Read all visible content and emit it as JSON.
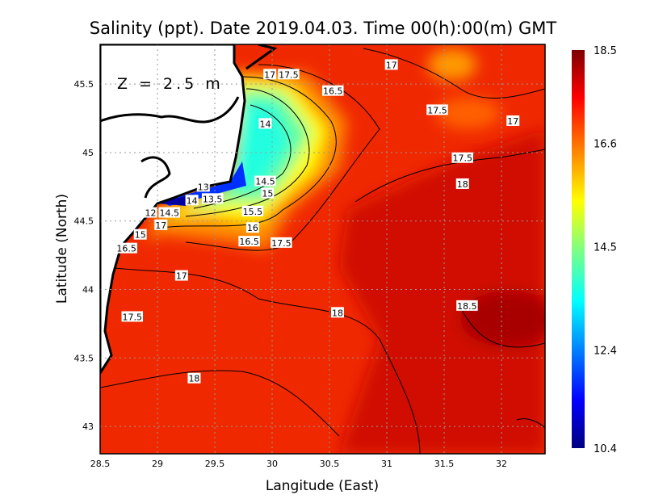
{
  "chart_data": {
    "type": "heatmap",
    "title": "Salinity (ppt). Date 2019.04.03. Time 00(h):00(m) GMT",
    "xlabel": "Langitude (East)",
    "ylabel": "Latitude (North)",
    "annotation": "Z = 2.5 m",
    "xlim": [
      28.5,
      32.38
    ],
    "ylim": [
      42.8,
      45.79
    ],
    "xticks": [
      28.5,
      29,
      29.5,
      30,
      30.5,
      31,
      31.5,
      32
    ],
    "xtick_labels": [
      "28.5",
      "29",
      "29.5",
      "30",
      "30.5",
      "31",
      "31.5",
      "32"
    ],
    "yticks": [
      43,
      43.5,
      44,
      44.5,
      45,
      45.5
    ],
    "ytick_labels": [
      "43",
      "43.5",
      "44",
      "44.5",
      "45",
      "45.5"
    ],
    "grid": true,
    "colorbar": {
      "range": [
        10.4,
        18.5
      ],
      "ticks": [
        10.4,
        12.4,
        14.5,
        16.6,
        18.5
      ],
      "tick_labels": [
        "10.4",
        "12.4",
        "14.5",
        "16.6",
        "18.5"
      ],
      "colormap": [
        "#00007f",
        "#0000ff",
        "#00ffff",
        "#80ff80",
        "#ffff00",
        "#ff8000",
        "#ff0000",
        "#7f0000"
      ]
    },
    "contour_labels": [
      {
        "text": "17",
        "lon": 31.04,
        "lat": 45.64
      },
      {
        "text": "17",
        "lon": 29.98,
        "lat": 45.57
      },
      {
        "text": "17.5",
        "lon": 30.13,
        "lat": 45.57
      },
      {
        "text": "16.5",
        "lon": 30.53,
        "lat": 45.45
      },
      {
        "text": "17.5",
        "lon": 31.44,
        "lat": 45.31
      },
      {
        "text": "17",
        "lon": 32.1,
        "lat": 45.23
      },
      {
        "text": "14",
        "lon": 29.94,
        "lat": 45.21
      },
      {
        "text": "17.5",
        "lon": 31.66,
        "lat": 44.96
      },
      {
        "text": "18",
        "lon": 31.66,
        "lat": 44.77
      },
      {
        "text": "14.5",
        "lon": 29.94,
        "lat": 44.79
      },
      {
        "text": "15",
        "lon": 29.96,
        "lat": 44.74
      },
      {
        "text": "13",
        "lon": 29.4,
        "lat": 44.75
      },
      {
        "text": "13.5",
        "lon": 29.48,
        "lat": 44.7
      },
      {
        "text": "14",
        "lon": 29.3,
        "lat": 44.65
      },
      {
        "text": "12",
        "lon": 28.94,
        "lat": 44.56
      },
      {
        "text": "14.5",
        "lon": 29.07,
        "lat": 44.56
      },
      {
        "text": "17",
        "lon": 29.03,
        "lat": 44.47
      },
      {
        "text": "15.5",
        "lon": 29.83,
        "lat": 44.57
      },
      {
        "text": "16",
        "lon": 29.83,
        "lat": 44.45
      },
      {
        "text": "16.5",
        "lon": 29.8,
        "lat": 44.35
      },
      {
        "text": "17.5",
        "lon": 30.08,
        "lat": 44.34
      },
      {
        "text": "15",
        "lon": 28.85,
        "lat": 44.4
      },
      {
        "text": "16.5",
        "lon": 28.73,
        "lat": 44.3
      },
      {
        "text": "17",
        "lon": 29.21,
        "lat": 44.1
      },
      {
        "text": "17.5",
        "lon": 28.78,
        "lat": 43.8
      },
      {
        "text": "18",
        "lon": 30.57,
        "lat": 43.83
      },
      {
        "text": "18.5",
        "lon": 31.7,
        "lat": 43.88
      },
      {
        "text": "18",
        "lon": 29.32,
        "lat": 43.35
      }
    ]
  }
}
